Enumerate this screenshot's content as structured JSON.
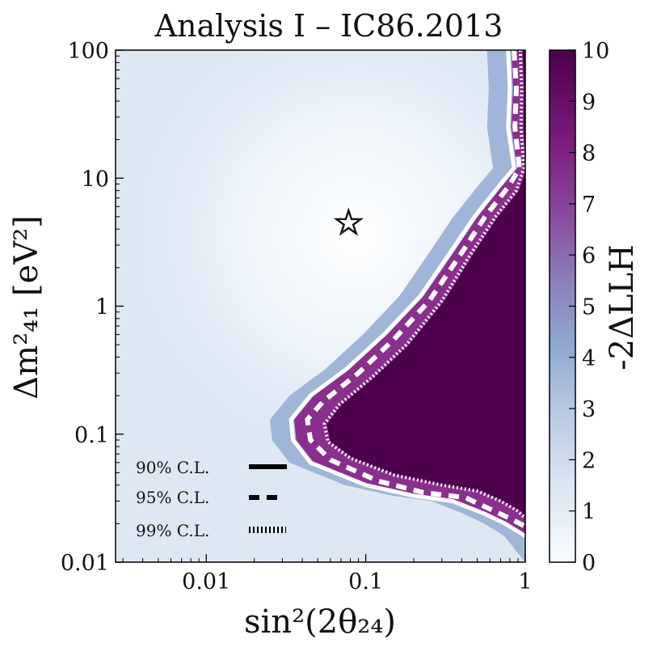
{
  "chart_data": {
    "type": "heatmap",
    "title": "Analysis I – IC86.2013",
    "xlabel": "sin²(2θ₂₄)",
    "ylabel": "Δm²₄₁ [eV²]",
    "x_scale": "log",
    "y_scale": "log",
    "xlim": [
      0.0027,
      1.0
    ],
    "ylim": [
      0.01,
      100
    ],
    "x_ticks": [
      "0.01",
      "0.1",
      "1"
    ],
    "x_tick_values": [
      0.01,
      0.1,
      1
    ],
    "y_ticks": [
      "100",
      "10",
      "1",
      "0.1",
      "0.01"
    ],
    "y_tick_values": [
      100,
      10,
      1,
      0.1,
      0.01
    ],
    "colorbar": {
      "label": "-2ΔLLH",
      "min": 0,
      "max": 10,
      "ticks": [
        "0",
        "1",
        "2",
        "3",
        "4",
        "5",
        "6",
        "7",
        "8",
        "9",
        "10"
      ],
      "tick_values": [
        0,
        1,
        2,
        3,
        4,
        5,
        6,
        7,
        8,
        9,
        10
      ],
      "colors": [
        "#f7fbfd",
        "#dbe6f1",
        "#b5c9e1",
        "#8fa9d0",
        "#8c7fbb",
        "#89499e",
        "#7b1c7f",
        "#4d004b"
      ]
    },
    "best_fit": {
      "sin2_2theta24": 0.078,
      "dm2_41": 4.5,
      "marker": "star"
    },
    "contours": [
      {
        "name": "90% C.L.",
        "style": "solid",
        "points": [
          [
            0.78,
            100
          ],
          [
            0.8,
            50
          ],
          [
            0.78,
            25
          ],
          [
            0.85,
            12
          ],
          [
            0.7,
            9
          ],
          [
            0.48,
            5
          ],
          [
            0.33,
            2.5
          ],
          [
            0.22,
            1.2
          ],
          [
            0.13,
            0.6
          ],
          [
            0.075,
            0.32
          ],
          [
            0.045,
            0.2
          ],
          [
            0.034,
            0.13
          ],
          [
            0.035,
            0.09
          ],
          [
            0.045,
            0.06
          ],
          [
            0.1,
            0.04
          ],
          [
            0.2,
            0.033
          ],
          [
            0.35,
            0.03
          ],
          [
            0.55,
            0.024
          ],
          [
            0.75,
            0.02
          ],
          [
            1.0,
            0.016
          ]
        ]
      },
      {
        "name": "95% C.L.",
        "style": "dashed",
        "points": [
          [
            0.85,
            100
          ],
          [
            0.88,
            50
          ],
          [
            0.86,
            25
          ],
          [
            0.92,
            12
          ],
          [
            0.78,
            8.5
          ],
          [
            0.56,
            5
          ],
          [
            0.39,
            2.5
          ],
          [
            0.25,
            1.1
          ],
          [
            0.15,
            0.55
          ],
          [
            0.09,
            0.3
          ],
          [
            0.054,
            0.18
          ],
          [
            0.043,
            0.13
          ],
          [
            0.045,
            0.09
          ],
          [
            0.06,
            0.063
          ],
          [
            0.12,
            0.043
          ],
          [
            0.23,
            0.035
          ],
          [
            0.42,
            0.032
          ],
          [
            0.6,
            0.026
          ],
          [
            0.8,
            0.022
          ],
          [
            1.0,
            0.019
          ]
        ]
      },
      {
        "name": "99% C.L.",
        "style": "dotted",
        "points": [
          [
            0.93,
            100
          ],
          [
            0.95,
            50
          ],
          [
            0.94,
            25
          ],
          [
            0.98,
            12
          ],
          [
            0.88,
            8
          ],
          [
            0.65,
            5
          ],
          [
            0.45,
            2.5
          ],
          [
            0.3,
            1.1
          ],
          [
            0.18,
            0.5
          ],
          [
            0.11,
            0.28
          ],
          [
            0.068,
            0.17
          ],
          [
            0.055,
            0.12
          ],
          [
            0.058,
            0.087
          ],
          [
            0.08,
            0.065
          ],
          [
            0.15,
            0.048
          ],
          [
            0.3,
            0.04
          ],
          [
            0.5,
            0.036
          ],
          [
            0.7,
            0.03
          ],
          [
            0.9,
            0.025
          ],
          [
            1.0,
            0.022
          ]
        ]
      }
    ],
    "legend": {
      "position": "lower-left",
      "entries": [
        {
          "label": "90% C.L.",
          "style": "solid"
        },
        {
          "label": "95% C.L.",
          "style": "dashed"
        },
        {
          "label": "99% C.L.",
          "style": "dotted"
        }
      ]
    }
  }
}
